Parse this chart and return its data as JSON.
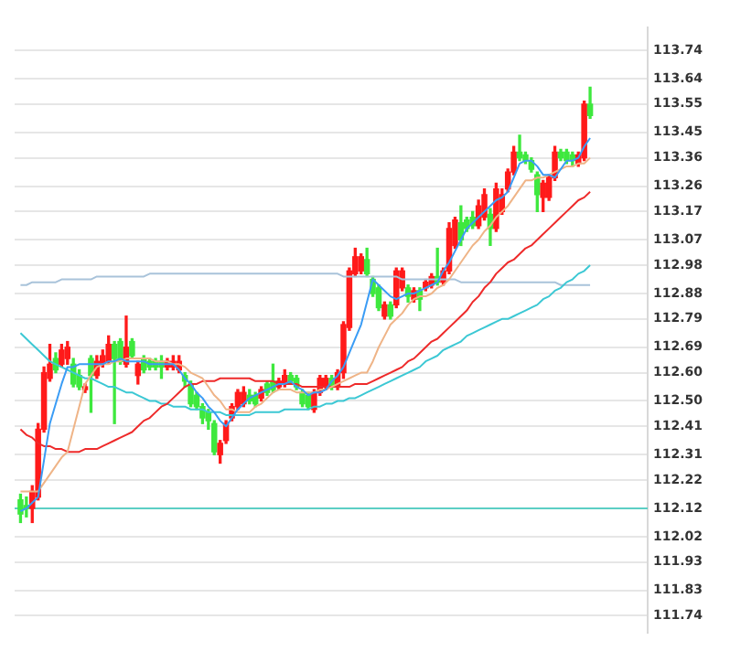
{
  "chart_data": {
    "type": "candlestick",
    "categories": [
      null,
      null,
      null,
      null,
      null,
      null,
      null,
      null,
      null,
      null,
      null,
      null,
      null,
      null,
      null,
      null,
      null,
      null,
      null,
      null,
      null,
      null,
      null,
      null,
      null,
      null,
      null,
      null,
      null,
      null,
      null,
      null,
      null,
      null,
      null,
      null,
      null,
      null,
      null,
      null,
      null,
      null,
      null,
      null,
      null,
      null,
      null,
      null,
      null,
      null,
      null,
      null,
      null,
      null,
      null,
      null,
      null,
      null,
      null,
      null,
      null,
      null,
      null,
      null,
      null,
      null,
      null,
      null,
      null,
      null,
      null,
      null,
      null,
      null,
      null,
      null,
      null,
      null,
      null,
      null,
      null,
      null,
      null,
      null,
      null,
      null,
      null,
      null,
      null,
      null,
      null,
      null,
      null,
      null,
      null,
      null,
      null,
      null
    ],
    "ohlc": [
      [
        112.15,
        112.17,
        112.07,
        112.1
      ],
      [
        112.13,
        112.16,
        112.09,
        112.12
      ],
      [
        112.12,
        112.2,
        112.07,
        112.18
      ],
      [
        112.16,
        112.42,
        112.15,
        112.4
      ],
      [
        112.4,
        112.62,
        112.39,
        112.6
      ],
      [
        112.58,
        112.7,
        112.57,
        112.63
      ],
      [
        112.65,
        112.67,
        112.6,
        112.61
      ],
      [
        112.63,
        112.7,
        112.62,
        112.68
      ],
      [
        112.65,
        112.71,
        112.63,
        112.69
      ],
      [
        112.63,
        112.65,
        112.55,
        112.56
      ],
      [
        112.59,
        112.61,
        112.54,
        112.55
      ],
      [
        112.54,
        112.56,
        112.53,
        112.55
      ],
      [
        112.65,
        112.66,
        112.46,
        112.59
      ],
      [
        112.59,
        112.66,
        112.58,
        112.64
      ],
      [
        112.63,
        112.68,
        112.62,
        112.66
      ],
      [
        112.64,
        112.73,
        112.63,
        112.7
      ],
      [
        112.7,
        112.71,
        112.42,
        112.65
      ],
      [
        112.71,
        112.72,
        112.63,
        112.64
      ],
      [
        112.63,
        112.8,
        112.62,
        112.69
      ],
      [
        112.71,
        112.72,
        112.65,
        112.66
      ],
      [
        112.59,
        112.64,
        112.56,
        112.63
      ],
      [
        112.65,
        112.66,
        112.6,
        112.61
      ],
      [
        112.64,
        112.65,
        112.61,
        112.62
      ],
      [
        112.64,
        112.65,
        112.61,
        112.62
      ],
      [
        112.64,
        112.66,
        112.58,
        112.62
      ],
      [
        112.62,
        112.65,
        112.61,
        112.64
      ],
      [
        112.62,
        112.66,
        112.61,
        112.64
      ],
      [
        112.61,
        112.66,
        112.6,
        112.64
      ],
      [
        112.59,
        112.6,
        112.55,
        112.57
      ],
      [
        112.56,
        112.57,
        112.48,
        112.49
      ],
      [
        112.52,
        112.53,
        112.47,
        112.48
      ],
      [
        112.48,
        112.49,
        112.42,
        112.44
      ],
      [
        112.46,
        112.47,
        112.4,
        112.43
      ],
      [
        112.42,
        112.43,
        112.31,
        112.32
      ],
      [
        112.31,
        112.36,
        112.28,
        112.35
      ],
      [
        112.36,
        112.43,
        112.35,
        112.42
      ],
      [
        112.44,
        112.49,
        112.43,
        112.48
      ],
      [
        112.48,
        112.54,
        112.47,
        112.53
      ],
      [
        112.49,
        112.55,
        112.48,
        112.53
      ],
      [
        112.52,
        112.54,
        112.49,
        112.5
      ],
      [
        112.52,
        112.53,
        112.48,
        112.49
      ],
      [
        112.51,
        112.55,
        112.5,
        112.54
      ],
      [
        112.56,
        112.57,
        112.52,
        112.53
      ],
      [
        112.57,
        112.63,
        112.53,
        112.54
      ],
      [
        112.55,
        112.58,
        112.54,
        112.57
      ],
      [
        112.56,
        112.61,
        112.55,
        112.59
      ],
      [
        112.59,
        112.6,
        112.56,
        112.57
      ],
      [
        112.58,
        112.59,
        112.54,
        112.55
      ],
      [
        112.53,
        112.54,
        112.48,
        112.49
      ],
      [
        112.52,
        112.53,
        112.47,
        112.48
      ],
      [
        112.47,
        112.54,
        112.46,
        112.53
      ],
      [
        112.53,
        112.59,
        112.52,
        112.58
      ],
      [
        112.55,
        112.59,
        112.54,
        112.58
      ],
      [
        112.58,
        112.59,
        112.54,
        112.55
      ],
      [
        112.55,
        112.61,
        112.54,
        112.6
      ],
      [
        112.6,
        112.78,
        112.58,
        112.77
      ],
      [
        112.76,
        112.97,
        112.75,
        112.96
      ],
      [
        112.95,
        113.04,
        112.94,
        113.01
      ],
      [
        112.96,
        113.02,
        112.95,
        113.01
      ],
      [
        113.0,
        113.04,
        112.94,
        112.95
      ],
      [
        112.93,
        112.94,
        112.87,
        112.88
      ],
      [
        112.9,
        112.91,
        112.82,
        112.83
      ],
      [
        112.8,
        112.85,
        112.79,
        112.84
      ],
      [
        112.84,
        112.85,
        112.79,
        112.8
      ],
      [
        112.84,
        112.97,
        112.83,
        112.96
      ],
      [
        112.9,
        112.97,
        112.89,
        112.96
      ],
      [
        112.9,
        112.91,
        112.85,
        112.87
      ],
      [
        112.86,
        112.9,
        112.85,
        112.89
      ],
      [
        112.89,
        112.9,
        112.82,
        112.86
      ],
      [
        112.9,
        112.93,
        112.89,
        112.92
      ],
      [
        112.91,
        112.95,
        112.9,
        112.94
      ],
      [
        112.94,
        113.04,
        112.91,
        112.92
      ],
      [
        112.92,
        112.97,
        112.91,
        112.96
      ],
      [
        112.96,
        113.13,
        112.95,
        113.11
      ],
      [
        113.05,
        113.15,
        113.04,
        113.14
      ],
      [
        113.13,
        113.19,
        113.05,
        113.07
      ],
      [
        113.14,
        113.15,
        113.1,
        113.11
      ],
      [
        113.15,
        113.17,
        113.11,
        113.12
      ],
      [
        113.12,
        113.21,
        113.11,
        113.19
      ],
      [
        113.15,
        113.25,
        113.14,
        113.23
      ],
      [
        113.16,
        113.18,
        113.05,
        113.11
      ],
      [
        113.11,
        113.27,
        113.1,
        113.25
      ],
      [
        113.17,
        113.25,
        113.16,
        113.23
      ],
      [
        113.25,
        113.32,
        113.24,
        113.31
      ],
      [
        113.31,
        113.4,
        113.3,
        113.38
      ],
      [
        113.38,
        113.44,
        113.35,
        113.36
      ],
      [
        113.37,
        113.38,
        113.34,
        113.35
      ],
      [
        113.35,
        113.36,
        113.31,
        113.32
      ],
      [
        113.3,
        113.31,
        113.17,
        113.23
      ],
      [
        113.22,
        113.28,
        113.17,
        113.27
      ],
      [
        113.22,
        113.3,
        113.21,
        113.29
      ],
      [
        113.29,
        113.4,
        113.28,
        113.38
      ],
      [
        113.38,
        113.39,
        113.35,
        113.36
      ],
      [
        113.38,
        113.39,
        113.34,
        113.35
      ],
      [
        113.37,
        113.38,
        113.33,
        113.35
      ],
      [
        113.34,
        113.38,
        113.33,
        113.37
      ],
      [
        113.36,
        113.56,
        113.35,
        113.55
      ],
      [
        113.55,
        113.61,
        113.5,
        113.51
      ]
    ],
    "colors": [
      "#3ee83e",
      "#3ee83e",
      "#ff1a1a",
      "#ff1a1a",
      "#ff1a1a",
      "#ff1a1a",
      "#3ee83e",
      "#ff1a1a",
      "#ff1a1a",
      "#3ee83e",
      "#3ee83e",
      "#ff1a1a",
      "#3ee83e",
      "#ff1a1a",
      "#ff1a1a",
      "#ff1a1a",
      "#3ee83e",
      "#3ee83e",
      "#ff1a1a",
      "#3ee83e",
      "#ff1a1a",
      "#3ee83e",
      "#3ee83e",
      "#3ee83e",
      "#3ee83e",
      "#ff1a1a",
      "#ff1a1a",
      "#ff1a1a",
      "#3ee83e",
      "#3ee83e",
      "#3ee83e",
      "#3ee83e",
      "#3ee83e",
      "#3ee83e",
      "#ff1a1a",
      "#ff1a1a",
      "#ff1a1a",
      "#ff1a1a",
      "#ff1a1a",
      "#3ee83e",
      "#3ee83e",
      "#ff1a1a",
      "#3ee83e",
      "#3ee83e",
      "#ff1a1a",
      "#ff1a1a",
      "#3ee83e",
      "#3ee83e",
      "#3ee83e",
      "#3ee83e",
      "#ff1a1a",
      "#ff1a1a",
      "#ff1a1a",
      "#3ee83e",
      "#ff1a1a",
      "#ff1a1a",
      "#ff1a1a",
      "#ff1a1a",
      "#ff1a1a",
      "#3ee83e",
      "#3ee83e",
      "#3ee83e",
      "#ff1a1a",
      "#3ee83e",
      "#ff1a1a",
      "#ff1a1a",
      "#3ee83e",
      "#ff1a1a",
      "#3ee83e",
      "#ff1a1a",
      "#ff1a1a",
      "#3ee83e",
      "#ff1a1a",
      "#ff1a1a",
      "#ff1a1a",
      "#3ee83e",
      "#3ee83e",
      "#3ee83e",
      "#ff1a1a",
      "#ff1a1a",
      "#3ee83e",
      "#ff1a1a",
      "#ff1a1a",
      "#ff1a1a",
      "#ff1a1a",
      "#3ee83e",
      "#3ee83e",
      "#3ee83e",
      "#3ee83e",
      "#ff1a1a",
      "#ff1a1a",
      "#ff1a1a",
      "#3ee83e",
      "#3ee83e",
      "#3ee83e",
      "#ff1a1a",
      "#ff1a1a",
      "#3ee83e"
    ],
    "series": [
      {
        "type": "line",
        "color": "#3a9cf5",
        "values": [
          112.11,
          112.12,
          112.14,
          112.16,
          112.29,
          112.42,
          112.49,
          112.56,
          112.62,
          112.62,
          112.63,
          112.63,
          112.63,
          112.63,
          112.63,
          112.64,
          112.64,
          112.65,
          112.64,
          112.64,
          112.64,
          112.64,
          112.63,
          112.63,
          112.63,
          112.63,
          112.63,
          112.61,
          112.58,
          112.56,
          112.53,
          112.51,
          112.48,
          112.46,
          112.43,
          112.41,
          112.44,
          112.47,
          112.49,
          112.51,
          112.52,
          112.53,
          112.54,
          112.55,
          112.56,
          112.56,
          112.57,
          112.55,
          112.54,
          112.52,
          112.53,
          112.53,
          112.54,
          112.57,
          112.59,
          112.62,
          112.67,
          112.72,
          112.77,
          112.85,
          112.93,
          112.91,
          112.89,
          112.87,
          112.86,
          112.87,
          112.88,
          112.88,
          112.89,
          112.9,
          112.91,
          112.92,
          112.96,
          112.99,
          113.03,
          113.07,
          113.11,
          113.13,
          113.15,
          113.17,
          113.19,
          113.21,
          113.22,
          113.24,
          113.29,
          113.34,
          113.35,
          113.35,
          113.33,
          113.3,
          113.3,
          113.29,
          113.32,
          113.35,
          113.35,
          113.36,
          113.4,
          113.43
        ]
      },
      {
        "type": "line",
        "color": "#efb487",
        "values": [
          112.18,
          112.18,
          112.18,
          112.18,
          112.21,
          112.24,
          112.27,
          112.3,
          112.32,
          112.4,
          112.48,
          112.56,
          112.59,
          112.62,
          112.63,
          112.63,
          112.64,
          112.64,
          112.65,
          112.65,
          112.65,
          112.65,
          112.65,
          112.64,
          112.64,
          112.64,
          112.63,
          112.63,
          112.62,
          112.6,
          112.59,
          112.58,
          112.55,
          112.52,
          112.5,
          112.47,
          112.47,
          112.46,
          112.46,
          112.46,
          112.48,
          112.49,
          112.51,
          112.53,
          112.54,
          112.54,
          112.54,
          112.53,
          112.53,
          112.53,
          112.53,
          112.54,
          112.54,
          112.55,
          112.56,
          112.57,
          112.58,
          112.59,
          112.6,
          112.6,
          112.64,
          112.69,
          112.73,
          112.77,
          112.79,
          112.81,
          112.84,
          112.86,
          112.87,
          112.87,
          112.88,
          112.9,
          112.91,
          112.93,
          112.96,
          112.99,
          113.02,
          113.05,
          113.07,
          113.1,
          113.12,
          113.15,
          113.17,
          113.19,
          113.22,
          113.25,
          113.28,
          113.28,
          113.29,
          113.29,
          113.3,
          113.31,
          113.32,
          113.33,
          113.33,
          113.34,
          113.34,
          113.36
        ]
      },
      {
        "type": "line",
        "color": "#ee2a2a",
        "values": [
          112.4,
          112.38,
          112.37,
          112.35,
          112.34,
          112.34,
          112.33,
          112.33,
          112.32,
          112.32,
          112.32,
          112.33,
          112.33,
          112.33,
          112.34,
          112.35,
          112.36,
          112.37,
          112.38,
          112.39,
          112.41,
          112.43,
          112.44,
          112.46,
          112.48,
          112.49,
          112.51,
          112.53,
          112.55,
          112.56,
          112.56,
          112.57,
          112.57,
          112.57,
          112.58,
          112.58,
          112.58,
          112.58,
          112.58,
          112.58,
          112.57,
          112.57,
          112.57,
          112.57,
          112.56,
          112.56,
          112.56,
          112.56,
          112.55,
          112.55,
          112.55,
          112.55,
          112.55,
          112.55,
          112.55,
          112.55,
          112.55,
          112.56,
          112.56,
          112.56,
          112.57,
          112.58,
          112.59,
          112.6,
          112.61,
          112.62,
          112.64,
          112.65,
          112.67,
          112.69,
          112.71,
          112.72,
          112.74,
          112.76,
          112.78,
          112.8,
          112.82,
          112.85,
          112.87,
          112.9,
          112.92,
          112.95,
          112.97,
          112.99,
          113.0,
          113.02,
          113.04,
          113.05,
          113.07,
          113.09,
          113.11,
          113.13,
          113.15,
          113.17,
          113.19,
          113.21,
          113.22,
          113.24
        ]
      },
      {
        "type": "line",
        "color": "#3cc8d4",
        "values": [
          112.74,
          112.72,
          112.7,
          112.68,
          112.66,
          112.64,
          112.63,
          112.62,
          112.61,
          112.6,
          112.59,
          112.58,
          112.58,
          112.57,
          112.56,
          112.55,
          112.55,
          112.54,
          112.53,
          112.53,
          112.52,
          112.51,
          112.5,
          112.5,
          112.49,
          112.49,
          112.48,
          112.48,
          112.48,
          112.47,
          112.47,
          112.47,
          112.46,
          112.46,
          112.46,
          112.45,
          112.45,
          112.45,
          112.45,
          112.45,
          112.46,
          112.46,
          112.46,
          112.46,
          112.46,
          112.47,
          112.47,
          112.47,
          112.47,
          112.47,
          112.48,
          112.48,
          112.49,
          112.49,
          112.5,
          112.5,
          112.51,
          112.51,
          112.52,
          112.53,
          112.54,
          112.55,
          112.56,
          112.57,
          112.58,
          112.59,
          112.6,
          112.61,
          112.62,
          112.64,
          112.65,
          112.66,
          112.68,
          112.69,
          112.7,
          112.71,
          112.73,
          112.74,
          112.75,
          112.76,
          112.77,
          112.78,
          112.79,
          112.79,
          112.8,
          112.81,
          112.82,
          112.83,
          112.84,
          112.86,
          112.87,
          112.89,
          112.9,
          112.92,
          112.93,
          112.95,
          112.96,
          112.98
        ]
      },
      {
        "type": "line",
        "color": "#a9c3da",
        "values": [
          112.91,
          112.91,
          112.92,
          112.92,
          112.92,
          112.92,
          112.92,
          112.93,
          112.93,
          112.93,
          112.93,
          112.93,
          112.93,
          112.94,
          112.94,
          112.94,
          112.94,
          112.94,
          112.94,
          112.94,
          112.94,
          112.94,
          112.95,
          112.95,
          112.95,
          112.95,
          112.95,
          112.95,
          112.95,
          112.95,
          112.95,
          112.95,
          112.95,
          112.95,
          112.95,
          112.95,
          112.95,
          112.95,
          112.95,
          112.95,
          112.95,
          112.95,
          112.95,
          112.95,
          112.95,
          112.95,
          112.95,
          112.95,
          112.95,
          112.95,
          112.95,
          112.95,
          112.95,
          112.95,
          112.95,
          112.94,
          112.94,
          112.94,
          112.94,
          112.94,
          112.94,
          112.94,
          112.94,
          112.94,
          112.94,
          112.93,
          112.93,
          112.93,
          112.93,
          112.93,
          112.93,
          112.93,
          112.93,
          112.93,
          112.93,
          112.92,
          112.92,
          112.92,
          112.92,
          112.92,
          112.92,
          112.92,
          112.92,
          112.92,
          112.92,
          112.92,
          112.92,
          112.92,
          112.92,
          112.92,
          112.92,
          112.92,
          112.91,
          112.91,
          112.91,
          112.91,
          112.91,
          112.91
        ]
      }
    ],
    "ylim": [
      111.68,
      113.82
    ],
    "yticks": [
      113.74,
      113.64,
      113.55,
      113.45,
      113.36,
      113.26,
      113.17,
      113.07,
      112.98,
      112.88,
      112.79,
      112.69,
      {
        "value": 112.6,
        "label": "112.60"
      },
      {
        "value": 112.5,
        "label": "112.50"
      },
      112.41,
      112.31,
      112.22,
      112.12,
      112.02,
      111.93,
      111.83,
      111.74
    ],
    "ref_lines": [
      {
        "axis": "y",
        "value": 112.12,
        "color": "#5ccfc4"
      }
    ],
    "grid": "y",
    "tick_labels": "y",
    "legend": false
  }
}
